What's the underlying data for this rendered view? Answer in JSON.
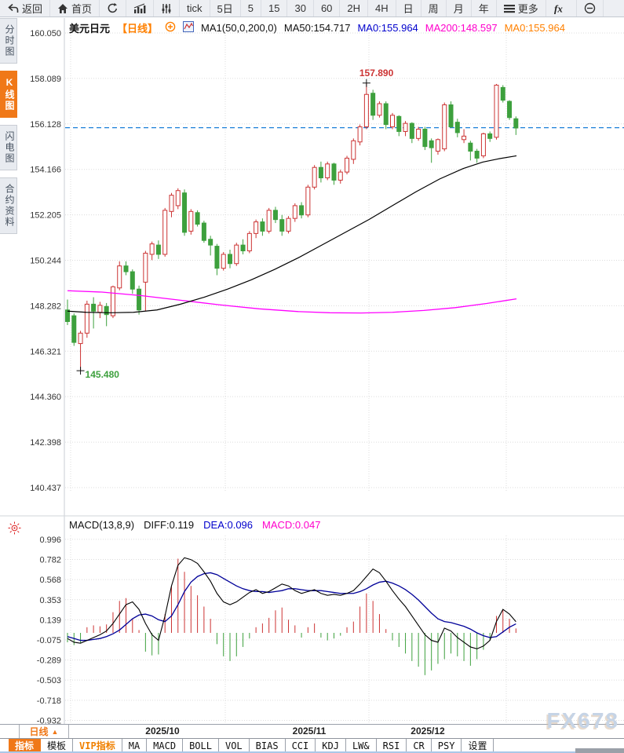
{
  "toolbar": {
    "items": [
      {
        "name": "back-button",
        "icon": "back-icon",
        "label": "返回"
      },
      {
        "name": "home-button",
        "icon": "home-icon",
        "label": "首页"
      },
      {
        "name": "refresh-button",
        "icon": "refresh-icon",
        "label": ""
      },
      {
        "name": "chart-style-button",
        "icon": "bar-chart-icon",
        "label": ""
      },
      {
        "name": "indicator-params-button",
        "icon": "sliders-icon",
        "label": ""
      },
      {
        "name": "interval-tick-button",
        "label": "tick"
      },
      {
        "name": "interval-5d-button",
        "label": "5日"
      },
      {
        "name": "interval-5m-button",
        "label": "5"
      },
      {
        "name": "interval-15m-button",
        "label": "15"
      },
      {
        "name": "interval-30m-button",
        "label": "30"
      },
      {
        "name": "interval-60m-button",
        "label": "60"
      },
      {
        "name": "interval-2h-button",
        "label": "2H"
      },
      {
        "name": "interval-4h-button",
        "label": "4H"
      },
      {
        "name": "interval-day-button",
        "label": "日"
      },
      {
        "name": "interval-week-button",
        "label": "周"
      },
      {
        "name": "interval-month-button",
        "label": "月"
      },
      {
        "name": "interval-year-button",
        "label": "年"
      },
      {
        "name": "more-button",
        "icon": "menu-icon",
        "label": "更多"
      },
      {
        "name": "fx-button",
        "icon": "fx-icon",
        "label": ""
      },
      {
        "name": "zoom-out-button",
        "icon": "minus-circle-icon",
        "label": ""
      }
    ]
  },
  "sidebar": {
    "items": [
      {
        "name": "sidebar-item-time-chart",
        "label": "分时图",
        "selected": false
      },
      {
        "name": "sidebar-item-kline-chart",
        "label": "K线图",
        "selected": true
      },
      {
        "name": "sidebar-item-lightning-chart",
        "label": "闪电图",
        "selected": false
      },
      {
        "name": "sidebar-item-contract-info",
        "label": "合约资料",
        "selected": false
      }
    ]
  },
  "header": {
    "symbol": "美元日元",
    "period": "【日线】",
    "ma_params": "MA1(50,0,200,0)",
    "ma50": "MA50:154.717",
    "ma0_blue": "MA0:155.964",
    "ma200": "MA200:148.597",
    "ma0_orange": "MA0:155.964"
  },
  "macd_header": {
    "params": "MACD(13,8,9)",
    "diff": "DIFF:0.119",
    "dea": "DEA:0.096",
    "macd": "MACD:0.047"
  },
  "bottom": {
    "period_tab": "日线",
    "period_tab_arrow": "▲",
    "x_labels": [
      {
        "label": "2025/10",
        "x": 207
      },
      {
        "label": "2025/11",
        "x": 394
      },
      {
        "label": "2025/12",
        "x": 545
      }
    ],
    "indicator_tabs": [
      {
        "label": "指标",
        "state": "selected"
      },
      {
        "label": "模板",
        "state": "normal"
      },
      {
        "label": "VIP指标",
        "state": "vip"
      },
      {
        "label": "MA",
        "state": "normal"
      },
      {
        "label": "MACD",
        "state": "normal"
      },
      {
        "label": "BOLL",
        "state": "normal"
      },
      {
        "label": "VOL",
        "state": "normal"
      },
      {
        "label": "BIAS",
        "state": "normal"
      },
      {
        "label": "CCI",
        "state": "normal"
      },
      {
        "label": "KDJ",
        "state": "normal"
      },
      {
        "label": "LW&",
        "state": "normal"
      },
      {
        "label": "RSI",
        "state": "normal"
      },
      {
        "label": "CR",
        "state": "normal"
      },
      {
        "label": "PSY",
        "state": "normal"
      },
      {
        "label": "设置",
        "state": "normal"
      }
    ]
  },
  "watermark": "FX678",
  "colors": {
    "up": "#cc3333",
    "down": "#3da03d",
    "ma50": "#000000",
    "ma200": "#ff00ff",
    "diff_line": "#000000",
    "dea_line": "#000099",
    "current_price_line": "#1a7fd8",
    "grid": "#dcdcdc",
    "axis_text": "#333333",
    "accent_orange": "#f07818",
    "header_orange": "#ff8000",
    "header_blue": "#0000cc",
    "header_magenta": "#ff00cc"
  },
  "chart_data": {
    "type": "candlestick",
    "symbol": "美元日元",
    "period": "日线",
    "y_ticks": [
      "160.050",
      "158.089",
      "156.128",
      "154.166",
      "152.205",
      "150.244",
      "148.282",
      "146.321",
      "144.360",
      "142.398",
      "140.437"
    ],
    "x_labels": [
      "2025/10",
      "2025/11",
      "2025/12"
    ],
    "current_price": 155.964,
    "high_annotation": "157.890",
    "low_annotation": "145.480",
    "candles": [
      [
        148.1,
        148.55,
        147.45,
        147.6
      ],
      [
        147.85,
        147.95,
        146.55,
        146.7
      ],
      [
        146.65,
        147.2,
        145.48,
        147.1
      ],
      [
        147.1,
        148.5,
        146.9,
        148.35
      ],
      [
        148.35,
        148.65,
        147.3,
        148.05
      ],
      [
        148.0,
        148.45,
        147.75,
        148.3
      ],
      [
        148.25,
        148.4,
        147.4,
        147.9
      ],
      [
        147.85,
        149.15,
        147.75,
        149.1
      ],
      [
        149.05,
        150.2,
        148.95,
        150.0
      ],
      [
        150.0,
        150.2,
        149.6,
        149.75
      ],
      [
        149.75,
        149.85,
        148.8,
        149.0
      ],
      [
        149.0,
        149.15,
        147.9,
        148.1
      ],
      [
        149.3,
        150.65,
        148.05,
        150.55
      ],
      [
        150.5,
        151.05,
        150.25,
        150.95
      ],
      [
        150.9,
        151.1,
        150.3,
        150.5
      ],
      [
        150.5,
        152.5,
        150.4,
        152.4
      ],
      [
        152.35,
        153.15,
        152.1,
        153.05
      ],
      [
        152.6,
        153.35,
        152.45,
        153.25
      ],
      [
        153.15,
        153.3,
        151.3,
        151.45
      ],
      [
        151.5,
        152.45,
        151.35,
        152.35
      ],
      [
        152.3,
        152.4,
        151.7,
        151.8
      ],
      [
        151.85,
        151.95,
        151.0,
        151.1
      ],
      [
        151.15,
        151.3,
        150.45,
        150.9
      ],
      [
        150.85,
        150.95,
        149.6,
        149.9
      ],
      [
        149.9,
        150.6,
        149.8,
        150.5
      ],
      [
        150.5,
        150.7,
        149.9,
        150.1
      ],
      [
        150.1,
        151.0,
        150.0,
        150.9
      ],
      [
        150.9,
        151.15,
        150.5,
        150.65
      ],
      [
        150.65,
        151.5,
        150.55,
        151.4
      ],
      [
        151.4,
        152.0,
        151.2,
        151.9
      ],
      [
        151.9,
        152.05,
        151.3,
        151.5
      ],
      [
        151.5,
        152.5,
        151.4,
        152.4
      ],
      [
        152.4,
        152.55,
        151.85,
        152.0
      ],
      [
        152.0,
        152.2,
        151.3,
        151.5
      ],
      [
        151.5,
        152.15,
        151.4,
        152.05
      ],
      [
        152.05,
        152.7,
        151.9,
        152.6
      ],
      [
        152.6,
        152.75,
        152.05,
        152.2
      ],
      [
        152.2,
        153.5,
        152.1,
        153.4
      ],
      [
        153.4,
        154.35,
        153.3,
        154.25
      ],
      [
        154.25,
        154.5,
        153.6,
        153.8
      ],
      [
        153.8,
        154.5,
        153.7,
        154.4
      ],
      [
        154.4,
        154.45,
        153.5,
        153.7
      ],
      [
        153.7,
        154.15,
        153.55,
        154.05
      ],
      [
        154.05,
        154.75,
        153.95,
        154.65
      ],
      [
        154.6,
        155.5,
        154.4,
        155.4
      ],
      [
        155.35,
        156.1,
        155.2,
        156.0
      ],
      [
        156.0,
        157.89,
        155.9,
        157.4
      ],
      [
        157.45,
        157.6,
        156.3,
        156.5
      ],
      [
        156.5,
        157.1,
        156.4,
        157.0
      ],
      [
        157.0,
        157.1,
        155.9,
        156.1
      ],
      [
        156.0,
        156.6,
        155.9,
        156.5
      ],
      [
        156.45,
        156.5,
        155.6,
        155.8
      ],
      [
        155.8,
        156.25,
        155.6,
        156.15
      ],
      [
        156.15,
        156.2,
        155.3,
        155.5
      ],
      [
        155.5,
        156.0,
        155.4,
        155.9
      ],
      [
        155.9,
        156.0,
        155.0,
        155.15
      ],
      [
        155.4,
        155.5,
        154.45,
        155.1
      ],
      [
        154.95,
        155.5,
        154.8,
        155.45
      ],
      [
        155.05,
        157.05,
        154.95,
        156.95
      ],
      [
        156.95,
        157.1,
        155.95,
        156.0
      ],
      [
        156.2,
        156.35,
        155.55,
        155.75
      ],
      [
        155.45,
        155.9,
        155.3,
        155.6
      ],
      [
        155.3,
        155.4,
        154.55,
        154.95
      ],
      [
        154.95,
        155.05,
        154.45,
        154.65
      ],
      [
        154.75,
        155.75,
        154.65,
        155.7
      ],
      [
        155.7,
        155.8,
        155.35,
        155.5
      ],
      [
        155.55,
        157.85,
        155.45,
        157.8
      ],
      [
        157.7,
        157.8,
        157.05,
        157.15
      ],
      [
        157.1,
        157.15,
        156.3,
        156.4
      ],
      [
        156.35,
        156.45,
        155.65,
        155.95
      ]
    ],
    "ma50": [
      [
        86,
        148.05
      ],
      [
        110,
        148.0
      ],
      [
        140,
        147.98
      ],
      [
        170,
        148.0
      ],
      [
        200,
        148.1
      ],
      [
        230,
        148.35
      ],
      [
        260,
        148.65
      ],
      [
        290,
        149.0
      ],
      [
        320,
        149.4
      ],
      [
        350,
        149.85
      ],
      [
        380,
        150.35
      ],
      [
        410,
        150.9
      ],
      [
        440,
        151.45
      ],
      [
        470,
        152.0
      ],
      [
        500,
        152.6
      ],
      [
        530,
        153.2
      ],
      [
        560,
        153.75
      ],
      [
        590,
        154.2
      ],
      [
        615,
        154.48
      ],
      [
        635,
        154.62
      ],
      [
        658,
        154.75
      ]
    ],
    "ma200": [
      [
        86,
        148.93
      ],
      [
        130,
        148.87
      ],
      [
        180,
        148.72
      ],
      [
        230,
        148.52
      ],
      [
        280,
        148.32
      ],
      [
        330,
        148.15
      ],
      [
        380,
        148.03
      ],
      [
        420,
        147.98
      ],
      [
        460,
        147.97
      ],
      [
        500,
        148.0
      ],
      [
        540,
        148.08
      ],
      [
        580,
        148.2
      ],
      [
        620,
        148.38
      ],
      [
        658,
        148.58
      ]
    ],
    "macd": {
      "params": "13,8,9",
      "y_ticks": [
        "0.996",
        "0.782",
        "0.568",
        "0.353",
        "0.139",
        "-0.075",
        "-0.289",
        "-0.503",
        "-0.718",
        "-0.932"
      ],
      "hist": [
        -0.1,
        -0.13,
        -0.11,
        0.06,
        0.08,
        0.07,
        0.09,
        0.22,
        0.34,
        0.37,
        0.15,
        0.03,
        -0.2,
        -0.24,
        -0.23,
        0.2,
        0.5,
        0.79,
        0.65,
        0.5,
        0.4,
        0.28,
        0.15,
        -0.12,
        -0.25,
        -0.3,
        -0.25,
        -0.15,
        -0.06,
        0.06,
        0.1,
        0.16,
        0.24,
        0.27,
        0.14,
        0.08,
        -0.05,
        0.06,
        0.1,
        -0.05,
        -0.08,
        -0.06,
        -0.03,
        0.06,
        0.12,
        0.28,
        0.42,
        0.34,
        0.2,
        0.04,
        -0.08,
        -0.15,
        -0.22,
        -0.3,
        -0.36,
        -0.45,
        -0.4,
        -0.33,
        -0.28,
        -0.22,
        -0.25,
        -0.3,
        -0.35,
        -0.28,
        -0.18,
        -0.08,
        0.18,
        0.25,
        0.15,
        0.047
      ],
      "diff": [
        -0.06,
        -0.1,
        -0.11,
        -0.08,
        -0.05,
        -0.02,
        0.02,
        0.1,
        0.2,
        0.3,
        0.33,
        0.25,
        0.1,
        -0.02,
        -0.08,
        0.18,
        0.5,
        0.72,
        0.8,
        0.78,
        0.74,
        0.65,
        0.55,
        0.42,
        0.33,
        0.3,
        0.33,
        0.38,
        0.43,
        0.46,
        0.42,
        0.44,
        0.48,
        0.52,
        0.5,
        0.45,
        0.42,
        0.44,
        0.46,
        0.42,
        0.4,
        0.41,
        0.4,
        0.42,
        0.45,
        0.52,
        0.6,
        0.68,
        0.64,
        0.55,
        0.45,
        0.36,
        0.28,
        0.18,
        0.08,
        -0.02,
        -0.08,
        -0.1,
        0.05,
        0.02,
        -0.05,
        -0.1,
        -0.15,
        -0.17,
        -0.14,
        -0.08,
        0.12,
        0.25,
        0.2,
        0.119
      ],
      "dea": [
        -0.04,
        -0.06,
        -0.08,
        -0.08,
        -0.07,
        -0.06,
        -0.04,
        -0.01,
        0.03,
        0.09,
        0.15,
        0.19,
        0.2,
        0.18,
        0.14,
        0.12,
        0.18,
        0.3,
        0.44,
        0.54,
        0.6,
        0.63,
        0.64,
        0.62,
        0.58,
        0.54,
        0.5,
        0.47,
        0.45,
        0.44,
        0.44,
        0.43,
        0.44,
        0.45,
        0.47,
        0.47,
        0.46,
        0.45,
        0.45,
        0.45,
        0.44,
        0.43,
        0.42,
        0.42,
        0.42,
        0.44,
        0.47,
        0.51,
        0.54,
        0.55,
        0.53,
        0.5,
        0.46,
        0.41,
        0.35,
        0.28,
        0.21,
        0.15,
        0.12,
        0.11,
        0.09,
        0.07,
        0.04,
        0.0,
        -0.03,
        -0.05,
        -0.04,
        0.01,
        0.06,
        0.096
      ]
    }
  }
}
